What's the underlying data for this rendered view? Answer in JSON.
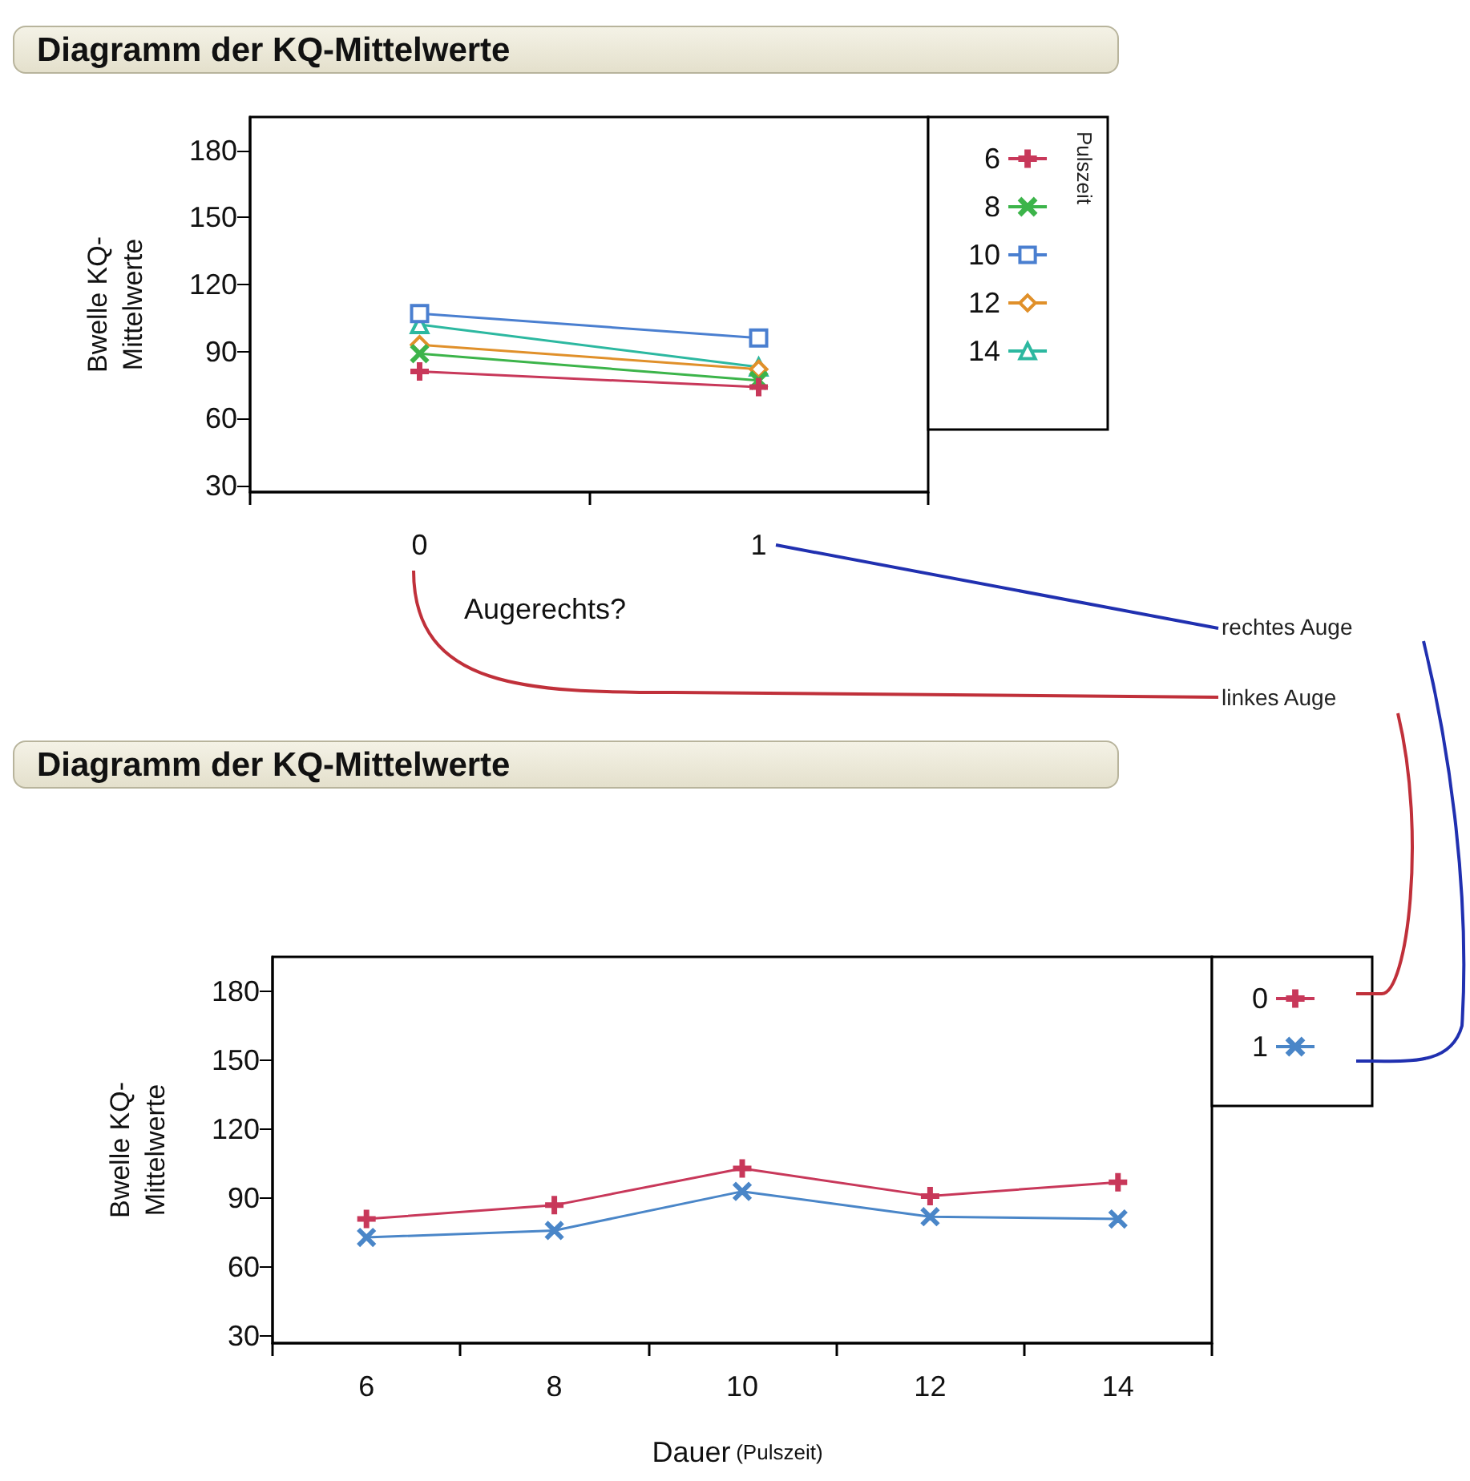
{
  "chart_data": [
    {
      "type": "line",
      "title": "Diagramm der KQ-Mittelwerte",
      "xlabel": "Augerechts?",
      "ylabel": "Bwelle KQ-Mittelwerte",
      "legend_title": "Pulszeit",
      "categories": [
        "0",
        "1"
      ],
      "ylim": [
        27,
        195
      ],
      "yticks": [
        30,
        60,
        90,
        120,
        150,
        180
      ],
      "legend": "right",
      "series": [
        {
          "name": "6",
          "color": "#c8385a",
          "marker": "plus",
          "values": [
            81,
            74
          ]
        },
        {
          "name": "8",
          "color": "#3cb44a",
          "marker": "cross",
          "values": [
            89,
            77
          ]
        },
        {
          "name": "10",
          "color": "#4a7fd0",
          "marker": "square",
          "values": [
            107,
            96
          ]
        },
        {
          "name": "12",
          "color": "#e0902a",
          "marker": "diamond",
          "values": [
            93,
            82
          ]
        },
        {
          "name": "14",
          "color": "#2cb8a0",
          "marker": "triangle",
          "values": [
            102,
            83
          ]
        }
      ]
    },
    {
      "type": "line",
      "title": "Diagramm der KQ-Mittelwerte",
      "xlabel": "Dauer (Pulszeit)",
      "ylabel": "Bwelle KQ-Mittelwerte",
      "categories": [
        "6",
        "8",
        "10",
        "12",
        "14"
      ],
      "ylim": [
        27,
        195
      ],
      "yticks": [
        30,
        60,
        90,
        120,
        150,
        180
      ],
      "legend": "right",
      "annotations": [
        "rechtes Auge",
        "linkes Auge"
      ],
      "series": [
        {
          "name": "0",
          "color": "#c8385a",
          "marker": "plus",
          "values": [
            81,
            87,
            103,
            91,
            97
          ]
        },
        {
          "name": "1",
          "color": "#4a86c8",
          "marker": "cross",
          "values": [
            73,
            76,
            93,
            82,
            81
          ]
        }
      ]
    }
  ]
}
